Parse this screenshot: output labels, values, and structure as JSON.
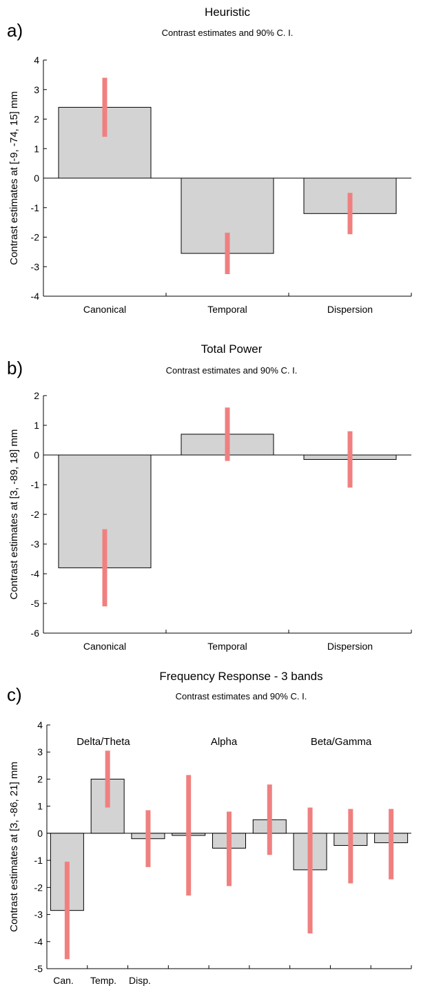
{
  "chart_data": [
    {
      "panel_label": "a)",
      "type": "bar",
      "title": "Heuristic",
      "subtitle": "Contrast estimates and 90% C. I.",
      "ylabel": "Contrast estimates at  [-9, -74, 15] mm",
      "ylim": [
        -4,
        4
      ],
      "yticks": [
        -4,
        -3,
        -2,
        -1,
        0,
        1,
        2,
        3,
        4
      ],
      "categories": [
        "Canonical",
        "Temporal",
        "Dispersion"
      ],
      "values": [
        2.4,
        -2.55,
        -1.2
      ],
      "ci_low": [
        1.4,
        -3.25,
        -1.9
      ],
      "ci_high": [
        3.4,
        -1.85,
        -0.5
      ],
      "bar_color": "#d3d3d3",
      "ci_color": "#f08080"
    },
    {
      "panel_label": "b)",
      "type": "bar",
      "title": "Total Power",
      "subtitle": "Contrast estimates and 90% C. I.",
      "ylabel": "Contrast estimates at  [3, -89, 18] mm",
      "ylim": [
        -6,
        2
      ],
      "yticks": [
        -6,
        -5,
        -4,
        -3,
        -2,
        -1,
        0,
        1,
        2
      ],
      "categories": [
        "Canonical",
        "Temporal",
        "Dispersion"
      ],
      "values": [
        -3.8,
        0.7,
        -0.15
      ],
      "ci_low": [
        -5.1,
        -0.2,
        -1.1
      ],
      "ci_high": [
        -2.5,
        1.6,
        0.8
      ],
      "bar_color": "#d3d3d3",
      "ci_color": "#f08080"
    },
    {
      "panel_label": "c)",
      "type": "bar",
      "title": "Frequency Response - 3 bands",
      "subtitle": "Contrast estimates and 90% C. I.",
      "ylabel": "Contrast estimates at  [3, -86, 21] mm",
      "ylim": [
        -5,
        4
      ],
      "yticks": [
        -5,
        -4,
        -3,
        -2,
        -1,
        0,
        1,
        2,
        3,
        4
      ],
      "categories": [
        "Can.",
        "Temp.",
        "Disp.",
        "",
        "",
        "",
        "",
        "",
        ""
      ],
      "group_labels": [
        "Delta/Theta",
        "Alpha",
        "Beta/Gamma"
      ],
      "values": [
        -2.85,
        2.0,
        -0.2,
        -0.08,
        -0.55,
        0.5,
        -1.35,
        -0.45,
        -0.35
      ],
      "ci_low": [
        -4.65,
        0.95,
        -1.25,
        -2.3,
        -1.95,
        -0.8,
        -3.7,
        -1.85,
        -1.7
      ],
      "ci_high": [
        -1.05,
        3.05,
        0.85,
        2.15,
        0.8,
        1.8,
        0.95,
        0.9,
        0.9
      ],
      "bar_color": "#d3d3d3",
      "ci_color": "#f08080"
    }
  ]
}
